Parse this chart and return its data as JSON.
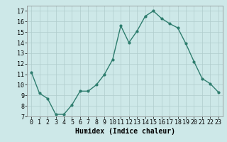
{
  "x": [
    0,
    1,
    2,
    3,
    4,
    5,
    6,
    7,
    8,
    9,
    10,
    11,
    12,
    13,
    14,
    15,
    16,
    17,
    18,
    19,
    20,
    21,
    22,
    23
  ],
  "y": [
    11.2,
    9.2,
    8.7,
    7.2,
    7.2,
    8.1,
    9.4,
    9.4,
    10.0,
    11.0,
    12.4,
    15.6,
    14.0,
    15.1,
    16.5,
    17.0,
    16.3,
    15.8,
    15.4,
    13.9,
    12.2,
    10.6,
    10.1,
    9.3
  ],
  "line_color": "#2e7d6e",
  "marker": "o",
  "marker_size": 2.0,
  "line_width": 1.0,
  "xlabel": "Humidex (Indice chaleur)",
  "xlim": [
    -0.5,
    23.5
  ],
  "ylim": [
    7,
    17.5
  ],
  "yticks": [
    7,
    8,
    9,
    10,
    11,
    12,
    13,
    14,
    15,
    16,
    17
  ],
  "xticks": [
    0,
    1,
    2,
    3,
    4,
    5,
    6,
    7,
    8,
    9,
    10,
    11,
    12,
    13,
    14,
    15,
    16,
    17,
    18,
    19,
    20,
    21,
    22,
    23
  ],
  "bg_color": "#cde8e8",
  "grid_color": "#b0cccc",
  "label_fontsize": 7,
  "tick_fontsize": 6
}
